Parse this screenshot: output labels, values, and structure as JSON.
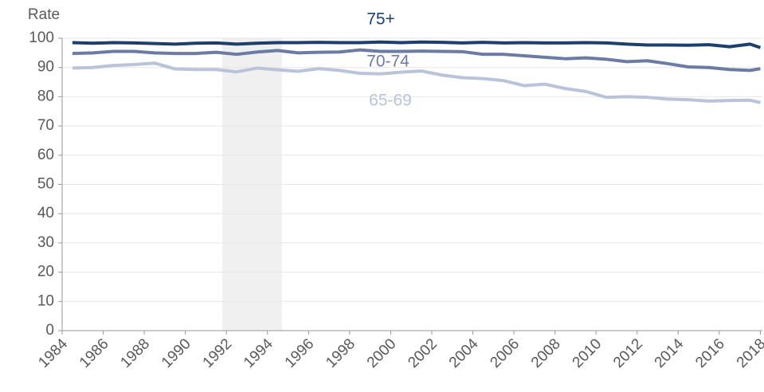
{
  "chart_data": {
    "type": "line",
    "y_label": "Rate",
    "x": [
      1984.5,
      1985.5,
      1986.5,
      1987.5,
      1988.5,
      1989.5,
      1990.5,
      1991.5,
      1992.5,
      1993.5,
      1994.5,
      1995.5,
      1996.5,
      1997.5,
      1998.5,
      1999.5,
      2000.5,
      2001.5,
      2002.5,
      2003.5,
      2004.5,
      2005.5,
      2006.5,
      2007.5,
      2008.5,
      2009.5,
      2010.5,
      2011.5,
      2012.5,
      2013.5,
      2014.5,
      2015.5,
      2016.5,
      2017.5,
      2018
    ],
    "series": [
      {
        "name": "75+",
        "color": "#1d3f6e",
        "values": [
          98.5,
          98.3,
          98.5,
          98.4,
          98.2,
          98,
          98.3,
          98.4,
          98,
          98.3,
          98.5,
          98.5,
          98.6,
          98.5,
          98.5,
          98.7,
          98.5,
          98.7,
          98.6,
          98.4,
          98.6,
          98.4,
          98.5,
          98.4,
          98.4,
          98.5,
          98.4,
          98,
          97.7,
          97.7,
          97.6,
          97.8,
          97.1,
          98,
          96.8
        ]
      },
      {
        "name": "70-74",
        "color": "#6b7ba3",
        "values": [
          94.8,
          95,
          95.5,
          95.5,
          95,
          94.8,
          94.8,
          95.2,
          94.5,
          95.3,
          95.8,
          95,
          95.2,
          95.3,
          96,
          95.5,
          95.5,
          95.6,
          95.5,
          95.4,
          94.5,
          94.5,
          94,
          93.5,
          93,
          93.3,
          92.8,
          92,
          92.3,
          91.3,
          90.2,
          90,
          89.3,
          89,
          89.6
        ]
      },
      {
        "name": "65-69",
        "color": "#b9c3d9",
        "values": [
          89.8,
          90,
          90.7,
          91,
          91.5,
          89.5,
          89.3,
          89.3,
          88.5,
          89.8,
          89.2,
          88.7,
          89.6,
          89,
          88,
          87.8,
          88.4,
          88.8,
          87.4,
          86.5,
          86.2,
          85.5,
          83.8,
          84.3,
          82.8,
          81.8,
          79.8,
          80,
          79.8,
          79.2,
          79,
          78.5,
          78.7,
          78.8,
          78
        ]
      }
    ],
    "highlight_range": [
      1991.8,
      1994.7
    ],
    "highlight_color": "#f0f0f0",
    "xlim": [
      1984,
      2018.1
    ],
    "xticks": [
      1984,
      1986,
      1988,
      1990,
      1992,
      1994,
      1996,
      1998,
      2000,
      2002,
      2004,
      2006,
      2008,
      2010,
      2012,
      2014,
      2016,
      2018
    ],
    "ylim": [
      0,
      100
    ],
    "yticks": [
      0,
      10,
      20,
      30,
      40,
      50,
      60,
      70,
      80,
      90,
      100
    ],
    "grid": true
  }
}
